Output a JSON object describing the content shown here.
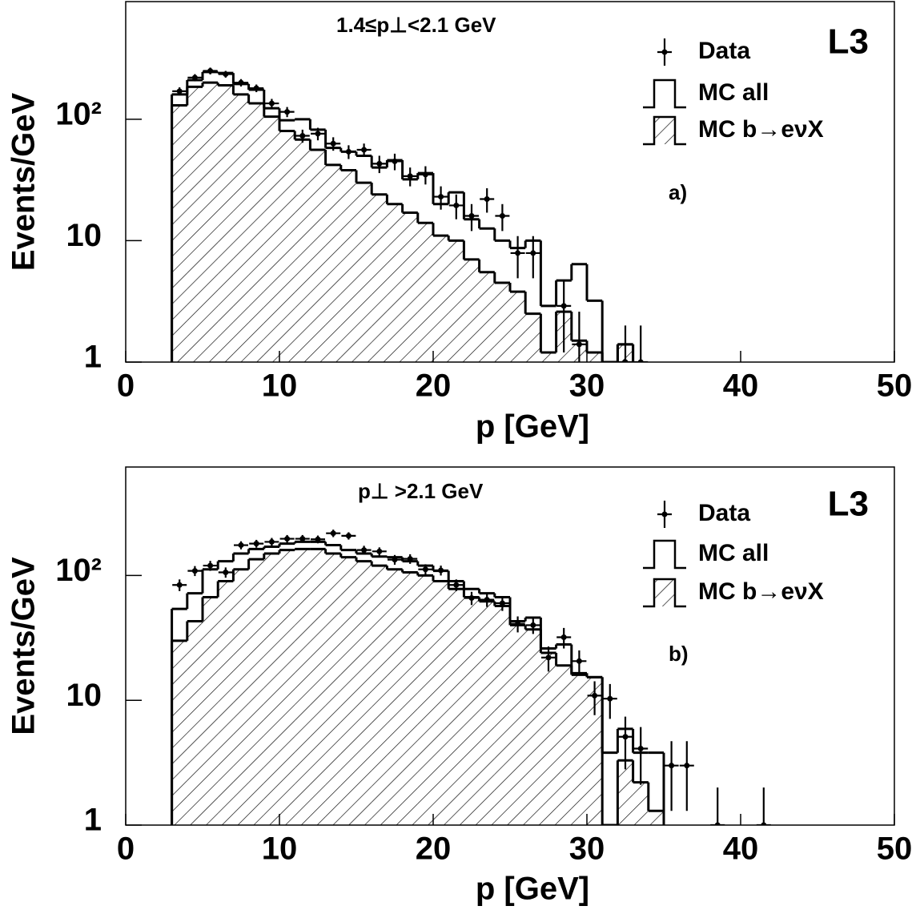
{
  "chart_data": [
    {
      "type": "histogram",
      "title": "1.4≤p⊥<2.1 GeV",
      "experiment": "L3",
      "panel_label": "a)",
      "x_label": "p [GeV]",
      "y_label": "Events/GeV",
      "log_y": true,
      "xlim": [
        0,
        50
      ],
      "ylim": [
        1,
        930
      ],
      "xticks": [
        0,
        10,
        20,
        30,
        40,
        50
      ],
      "yticks": [
        1,
        10,
        {
          "value": 100,
          "label": "10²"
        }
      ],
      "bins": [
        3,
        4,
        5,
        6,
        7,
        8,
        9,
        10,
        11,
        12,
        13,
        14,
        15,
        16,
        17,
        18,
        19,
        20,
        21,
        22,
        23,
        24,
        25,
        26,
        27,
        28,
        29,
        30,
        31,
        32,
        33
      ],
      "series": [
        {
          "name": "Data",
          "color": "#000000",
          "x": [
            3.5,
            4.5,
            5.5,
            6.5,
            7.5,
            8.5,
            9.5,
            10.5,
            11.5,
            12.5,
            13.5,
            14.5,
            15.5,
            16.5,
            17.5,
            18.5,
            19.5,
            20.5,
            21.5,
            22.5,
            23.5,
            24.5,
            25.5,
            26.5,
            27.5,
            28.5,
            29.5,
            30.5,
            31.5,
            32.5,
            33.5
          ],
          "values": [
            170,
            220,
            250,
            235,
            200,
            180,
            135,
            115,
            73,
            76,
            63,
            54,
            56,
            43,
            45,
            34,
            35,
            23,
            19.5,
            16,
            22,
            16,
            7.9,
            7.9,
            null,
            2.9,
            1.4,
            null,
            null,
            1,
            1
          ],
          "errors": [
            13,
            15,
            16,
            15,
            14,
            13,
            12,
            11,
            9,
            9,
            8,
            7,
            7,
            7,
            7,
            6,
            6,
            5,
            4.5,
            4,
            5,
            4,
            3,
            3,
            null,
            1.7,
            1.2,
            null,
            null,
            1,
            1
          ]
        },
        {
          "name": "MC all",
          "color": "#000000",
          "values": [
            160,
            210,
            245,
            240,
            195,
            175,
            123,
            98,
            100,
            82,
            58,
            54,
            50,
            40,
            46,
            32,
            36,
            20,
            25,
            15,
            12.6,
            10,
            8.7,
            10,
            2.9,
            4.7,
            6.4,
            3.2,
            null,
            1.4
          ]
        },
        {
          "name": "MC b→eνX",
          "color": "#000000",
          "hatch": true,
          "values": [
            130,
            185,
            200,
            190,
            160,
            135,
            105,
            80,
            68,
            56,
            42,
            38,
            30,
            24,
            20,
            17,
            14,
            11,
            10,
            7,
            5.5,
            4.5,
            3.8,
            2.5,
            1.2,
            2.6,
            1.5,
            1.2,
            null,
            1.4
          ]
        }
      ]
    },
    {
      "type": "histogram",
      "title": "p⊥ >2.1 GeV",
      "experiment": "L3",
      "panel_label": "b)",
      "x_label": "p [GeV]",
      "y_label": "Events/GeV",
      "log_y": true,
      "xlim": [
        0,
        50
      ],
      "ylim": [
        1,
        740
      ],
      "xticks": [
        0,
        10,
        20,
        30,
        40,
        50
      ],
      "yticks": [
        1,
        10,
        {
          "value": 100,
          "label": "10²"
        }
      ],
      "bins": [
        3,
        4,
        5,
        6,
        7,
        8,
        9,
        10,
        11,
        12,
        13,
        14,
        15,
        16,
        17,
        18,
        19,
        20,
        21,
        22,
        23,
        24,
        25,
        26,
        27,
        28,
        29,
        30,
        31,
        32,
        33,
        34,
        35
      ],
      "series": [
        {
          "name": "Data",
          "color": "#000000",
          "x": [
            3.5,
            4.5,
            5.5,
            6.5,
            7.5,
            8.5,
            9.5,
            10.5,
            11.5,
            12.5,
            13.5,
            14.5,
            15.5,
            16.5,
            17.5,
            18.5,
            19.5,
            20.5,
            21.5,
            22.5,
            23.5,
            24.5,
            25.5,
            26.5,
            27.5,
            28.5,
            29.5,
            30.5,
            31.5,
            32.5,
            33.5,
            34.5,
            35.5,
            36.5,
            37.5,
            38.5,
            39.5,
            40.5,
            41.5
          ],
          "values": [
            84,
            109,
            120,
            106,
            175,
            180,
            186,
            197,
            197,
            195,
            218,
            208,
            160,
            156,
            134,
            136,
            112,
            110,
            84,
            66,
            64,
            60,
            41,
            40,
            22,
            32,
            20.6,
            10.9,
            10.3,
            5.1,
            4.1,
            null,
            3.0,
            3.0,
            null,
            1,
            null,
            null,
            1
          ],
          "errors": [
            9,
            10,
            11,
            10,
            13,
            13,
            14,
            14,
            14,
            14,
            15,
            14,
            13,
            12,
            12,
            12,
            11,
            10,
            9,
            8,
            8,
            8,
            6,
            6,
            5,
            6,
            4.5,
            3.3,
            3.2,
            2.3,
            2,
            null,
            1.7,
            1.7,
            null,
            1,
            null,
            null,
            1
          ]
        },
        {
          "name": "MC all",
          "color": "#000000",
          "values": [
            54,
            72,
            112,
            130,
            150,
            163,
            170,
            180,
            186,
            186,
            175,
            160,
            150,
            142,
            140,
            130,
            120,
            109,
            90,
            78,
            72,
            67,
            43,
            46,
            26,
            28,
            16.5,
            15.3,
            3.8,
            5.9,
            3.8,
            3.8
          ]
        },
        {
          "name": "MC b→eνX",
          "color": "#000000",
          "hatch": true,
          "values": [
            30,
            43,
            67,
            90,
            112,
            135,
            150,
            160,
            163,
            163,
            150,
            140,
            130,
            120,
            112,
            106,
            100,
            90,
            78,
            67,
            62,
            57,
            40,
            37,
            24,
            19,
            16,
            15.3,
            null,
            3.3,
            2.2,
            1.3
          ]
        }
      ]
    }
  ]
}
